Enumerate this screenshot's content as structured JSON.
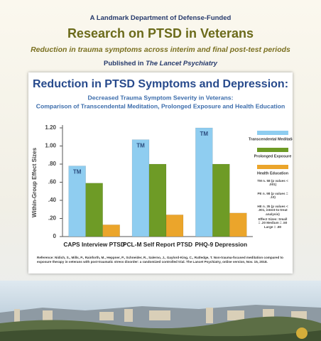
{
  "header": {
    "kicker": "A Landmark Department of Defense-Funded",
    "title": "Research on PTSD in Veterans",
    "subtitle": "Reduction in trauma symptoms across interim and final post-test periods",
    "published_prefix": "Published in",
    "journal": "The Lancet Psychiatry"
  },
  "chart_data": {
    "type": "bar",
    "title": "Reduction in PTSD Symptoms and Depression:",
    "subtitle_lines": [
      "Decreased Trauma Symptom Severity in Veterans:",
      "Comparison of Transcendental Meditation, Prolonged Exposure and Health Education"
    ],
    "y_label": "Within-Group Effect Sizes",
    "categories": [
      "CAPS Interview PTSD",
      "PCL-M Self Report PTSD",
      "PHQ-9 Depression"
    ],
    "series": [
      {
        "name": "Transcendental Meditation",
        "color": "#8fcdf0",
        "bar_label": "TM",
        "values": [
          0.78,
          1.07,
          1.2
        ]
      },
      {
        "name": "Prolonged Exposure",
        "color": "#6e9b26",
        "values": [
          0.59,
          0.8,
          0.8
        ]
      },
      {
        "name": "Health Education",
        "color": "#eba52b",
        "values": [
          0.13,
          0.24,
          0.26
        ]
      }
    ],
    "ylim": [
      0,
      1.2
    ],
    "yticks": [
      0,
      {
        "value": 0.2,
        "label": ".20"
      },
      {
        "value": 0.4,
        "label": ".40"
      },
      {
        "value": 0.6,
        "label": ".60"
      },
      {
        "value": 0.8,
        "label": ".80"
      },
      {
        "value": 1.0,
        "label": "1.00"
      },
      {
        "value": 1.2,
        "label": "1.20"
      }
    ],
    "grid": false,
    "notes": [
      "TM n. 58 (p values < .001)",
      "PE n. 98 (p values = .10)",
      "HE n. 35 (p values < .001, intent-to-treat analysis)",
      "Effect Sizes: Small = .20 Medium = .50 Large = .80"
    ],
    "reference": "Reference: Nidich, S., Mills, P., Rainforth, M., Heppner, P., Schneider, R., Salerno, J., Gaylord-King, C., Rutledge, T. Non-trauma-focused meditation compared to exposure therapy in veterans with post-traumatic stress disorder: a randomized controlled trial. The Lancet Psychiatry, online version, Nov. 15, 2018."
  }
}
